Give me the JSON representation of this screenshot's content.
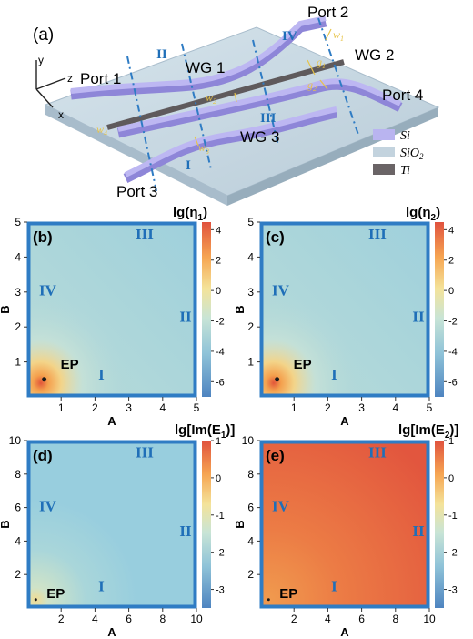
{
  "figure": {
    "panel_a": {
      "label": "(a)",
      "axes": {
        "y": "y",
        "z": "z",
        "x": "x"
      },
      "ports": [
        "Port 1",
        "Port 2",
        "Port 3",
        "Port 4"
      ],
      "waveguides": [
        "WG 1",
        "WG 2",
        "WG 3"
      ],
      "regions": [
        "I",
        "II",
        "III",
        "IV"
      ],
      "params": {
        "w1": "w",
        "w1_sub": "1",
        "w2": "w",
        "w2_sub": "2",
        "w3": "w",
        "w3_sub": "3",
        "w4": "w",
        "w4_sub": "4",
        "g1": "g",
        "g1_sub": "1",
        "g2": "g",
        "g2_sub": "2"
      },
      "legend": [
        {
          "label": "Si",
          "color": "#b9b4f0"
        },
        {
          "label": "SiO",
          "sub": "2",
          "color": "#c3d3de"
        },
        {
          "label": "Ti",
          "color": "#6a6466"
        }
      ]
    },
    "panels": [
      {
        "label": "(b)",
        "colorbar_title": "lg(η",
        "colorbar_sub": "1",
        "colorbar_close": ")",
        "xlabel": "A",
        "ylabel": "B",
        "ep": "EP"
      },
      {
        "label": "(c)",
        "colorbar_title": "lg(η",
        "colorbar_sub": "2",
        "colorbar_close": ")",
        "xlabel": "A",
        "ylabel": "B",
        "ep": "EP"
      },
      {
        "label": "(d)",
        "colorbar_title": "lg[Im(E",
        "colorbar_sub": "1",
        "colorbar_close": ")]",
        "xlabel": "A",
        "ylabel": "B",
        "ep": "EP"
      },
      {
        "label": "(e)",
        "colorbar_title": "lg[Im(E",
        "colorbar_sub": "2",
        "colorbar_close": ")]",
        "xlabel": "A",
        "ylabel": "B",
        "ep": "EP"
      }
    ]
  },
  "chart_data": [
    {
      "type": "heatmap",
      "title": "lg(η1)",
      "xlabel": "A",
      "ylabel": "B",
      "xlim": [
        0,
        5
      ],
      "ylim": [
        0,
        5
      ],
      "xticks": [
        "1",
        "2",
        "3",
        "4",
        "5"
      ],
      "yticks": [
        "1",
        "2",
        "3",
        "4",
        "5"
      ],
      "colorbar_ticks": [
        "4",
        "2",
        "0",
        "-2",
        "-4",
        "-6"
      ],
      "colorbar_range": [
        -7,
        4.5
      ],
      "annotations": [
        {
          "text": "EP",
          "x": 0.5,
          "y": 0.5
        }
      ],
      "region_labels": [
        "I",
        "II",
        "III",
        "IV"
      ]
    },
    {
      "type": "heatmap",
      "title": "lg(η2)",
      "xlabel": "A",
      "ylabel": "B",
      "xlim": [
        0,
        5
      ],
      "ylim": [
        0,
        5
      ],
      "xticks": [
        "1",
        "2",
        "3",
        "4",
        "5"
      ],
      "yticks": [
        "1",
        "2",
        "3",
        "4",
        "5"
      ],
      "colorbar_ticks": [
        "4",
        "2",
        "0",
        "-2",
        "-4",
        "-6"
      ],
      "colorbar_range": [
        -7,
        4.5
      ],
      "annotations": [
        {
          "text": "EP",
          "x": 0.5,
          "y": 0.5
        }
      ],
      "region_labels": [
        "I",
        "II",
        "III",
        "IV"
      ]
    },
    {
      "type": "heatmap",
      "title": "lg[Im(E1)]",
      "xlabel": "A",
      "ylabel": "B",
      "xlim": [
        0,
        10
      ],
      "ylim": [
        0,
        10
      ],
      "xticks": [
        "2",
        "4",
        "6",
        "8",
        "10"
      ],
      "yticks": [
        "2",
        "4",
        "6",
        "8",
        "10"
      ],
      "colorbar_ticks": [
        "1",
        "0",
        "-1",
        "-2",
        "-3"
      ],
      "colorbar_range": [
        -3.5,
        1
      ],
      "annotations": [
        {
          "text": "EP",
          "x": 0.5,
          "y": 0.5
        }
      ],
      "region_labels": [
        "I",
        "II",
        "III",
        "IV"
      ]
    },
    {
      "type": "heatmap",
      "title": "lg[Im(E2)]",
      "xlabel": "A",
      "ylabel": "B",
      "xlim": [
        0,
        10
      ],
      "ylim": [
        0,
        10
      ],
      "xticks": [
        "2",
        "4",
        "6",
        "8",
        "10"
      ],
      "yticks": [
        "2",
        "4",
        "6",
        "8",
        "10"
      ],
      "colorbar_ticks": [
        "1",
        "0",
        "-1",
        "-2",
        "-3"
      ],
      "colorbar_range": [
        -3.5,
        1
      ],
      "annotations": [
        {
          "text": "EP",
          "x": 0.5,
          "y": 0.5
        }
      ],
      "region_labels": [
        "I",
        "II",
        "III",
        "IV"
      ]
    }
  ]
}
